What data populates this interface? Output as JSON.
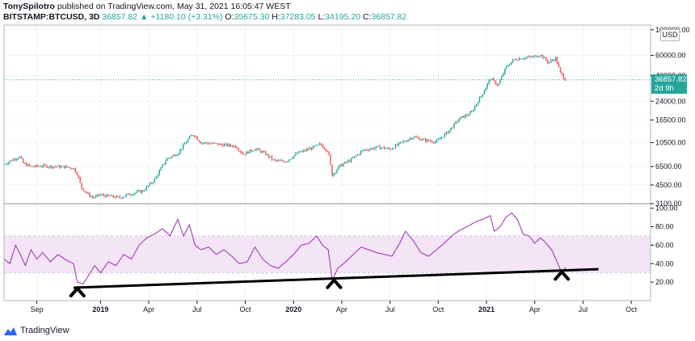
{
  "header": {
    "author": "TonySpilotro",
    "published_text": "published on TradingView.com, May 31, 2021 16:05:47 WEST",
    "symbol": "BITSTAMP:BTCUSD, 3D",
    "last": "36857.82",
    "arrow": "▲",
    "change": "+1180.10 (+3.31%)",
    "o_label": "O:",
    "o_val": "35675.30",
    "h_label": "H:",
    "h_val": "37283.05",
    "l_label": "L:",
    "l_val": "34195.20",
    "c_label": "C:",
    "c_val": "36857.82"
  },
  "currency_label": "USD",
  "price_box": {
    "price": "36857.82",
    "countdown": "2d 9h"
  },
  "footer": {
    "brand": "TradingView"
  },
  "colors": {
    "up": "#26a69a",
    "down": "#ef5350",
    "rsi": "#9c27b0",
    "rsi_band": "#f3e5f5",
    "trend": "#000000"
  },
  "chart_data": [
    {
      "type": "candlestick",
      "title": "BITSTAMP:BTCUSD, 3D",
      "yscale": "log",
      "ylim": [
        3100,
        110000
      ],
      "price_ticks": [
        "100000.00",
        "60000.00",
        "40000.00",
        "24000.00",
        "16500.00",
        "10500.00",
        "6500.00",
        "4500.00",
        "3100.00"
      ],
      "last_price": 36857.82,
      "time_range": [
        "2018-06",
        "2021-10"
      ],
      "close_series": [
        [
          2018.5,
          6800
        ],
        [
          2018.54,
          7400
        ],
        [
          2018.58,
          8000
        ],
        [
          2018.6,
          6900
        ],
        [
          2018.64,
          6500
        ],
        [
          2018.7,
          6600
        ],
        [
          2018.76,
          6500
        ],
        [
          2018.82,
          6450
        ],
        [
          2018.86,
          6300
        ],
        [
          2018.88,
          5600
        ],
        [
          2018.9,
          4300
        ],
        [
          2018.93,
          3800
        ],
        [
          2018.96,
          3500
        ],
        [
          2019.0,
          3700
        ],
        [
          2019.04,
          3600
        ],
        [
          2019.1,
          3500
        ],
        [
          2019.16,
          3800
        ],
        [
          2019.22,
          4000
        ],
        [
          2019.28,
          5000
        ],
        [
          2019.34,
          7500
        ],
        [
          2019.4,
          8500
        ],
        [
          2019.45,
          11000
        ],
        [
          2019.48,
          12500
        ],
        [
          2019.52,
          10500
        ],
        [
          2019.58,
          10300
        ],
        [
          2019.64,
          10000
        ],
        [
          2019.7,
          9800
        ],
        [
          2019.74,
          8300
        ],
        [
          2019.8,
          9300
        ],
        [
          2019.85,
          8500
        ],
        [
          2019.9,
          7300
        ],
        [
          2019.96,
          7200
        ],
        [
          2020.02,
          8500
        ],
        [
          2020.1,
          9500
        ],
        [
          2020.14,
          10200
        ],
        [
          2020.18,
          8800
        ],
        [
          2020.2,
          5500
        ],
        [
          2020.24,
          6600
        ],
        [
          2020.3,
          7500
        ],
        [
          2020.36,
          9000
        ],
        [
          2020.44,
          9600
        ],
        [
          2020.5,
          9200
        ],
        [
          2020.56,
          10500
        ],
        [
          2020.62,
          11800
        ],
        [
          2020.68,
          11000
        ],
        [
          2020.74,
          10700
        ],
        [
          2020.8,
          13000
        ],
        [
          2020.86,
          17000
        ],
        [
          2020.92,
          19000
        ],
        [
          2020.98,
          28000
        ],
        [
          2021.02,
          38000
        ],
        [
          2021.06,
          33000
        ],
        [
          2021.1,
          47000
        ],
        [
          2021.14,
          55000
        ],
        [
          2021.18,
          57000
        ],
        [
          2021.24,
          58000
        ],
        [
          2021.28,
          61000
        ],
        [
          2021.32,
          52000
        ],
        [
          2021.36,
          57000
        ],
        [
          2021.38,
          43000
        ],
        [
          2021.41,
          36857.82
        ]
      ]
    },
    {
      "type": "line",
      "title": "RSI",
      "ylim": [
        0,
        105
      ],
      "ticks": [
        "100.00",
        "80.00",
        "60.00",
        "40.00",
        "20.00"
      ],
      "band": [
        30,
        70
      ],
      "x_ticks": [
        {
          "t": 2018.67,
          "label": "Sep",
          "year": false
        },
        {
          "t": 2019.0,
          "label": "2019",
          "year": true
        },
        {
          "t": 2019.25,
          "label": "Apr",
          "year": false
        },
        {
          "t": 2019.5,
          "label": "Jul",
          "year": false
        },
        {
          "t": 2019.75,
          "label": "Oct",
          "year": false
        },
        {
          "t": 2020.0,
          "label": "2020",
          "year": true
        },
        {
          "t": 2020.25,
          "label": "Apr",
          "year": false
        },
        {
          "t": 2020.5,
          "label": "Jul",
          "year": false
        },
        {
          "t": 2020.75,
          "label": "Oct",
          "year": false
        },
        {
          "t": 2021.0,
          "label": "2021",
          "year": true
        },
        {
          "t": 2021.25,
          "label": "Apr",
          "year": false
        },
        {
          "t": 2021.5,
          "label": "Jul",
          "year": false
        },
        {
          "t": 2021.75,
          "label": "Oct",
          "year": false
        }
      ],
      "series": [
        [
          2018.5,
          45
        ],
        [
          2018.53,
          40
        ],
        [
          2018.56,
          60
        ],
        [
          2018.58,
          52
        ],
        [
          2018.61,
          38
        ],
        [
          2018.64,
          55
        ],
        [
          2018.67,
          45
        ],
        [
          2018.7,
          52
        ],
        [
          2018.74,
          42
        ],
        [
          2018.78,
          50
        ],
        [
          2018.82,
          44
        ],
        [
          2018.86,
          40
        ],
        [
          2018.88,
          20
        ],
        [
          2018.91,
          18
        ],
        [
          2018.94,
          28
        ],
        [
          2018.97,
          38
        ],
        [
          2019.0,
          30
        ],
        [
          2019.04,
          42
        ],
        [
          2019.08,
          38
        ],
        [
          2019.12,
          50
        ],
        [
          2019.16,
          45
        ],
        [
          2019.2,
          60
        ],
        [
          2019.24,
          68
        ],
        [
          2019.28,
          72
        ],
        [
          2019.32,
          78
        ],
        [
          2019.36,
          70
        ],
        [
          2019.4,
          88
        ],
        [
          2019.43,
          70
        ],
        [
          2019.46,
          82
        ],
        [
          2019.49,
          60
        ],
        [
          2019.52,
          55
        ],
        [
          2019.56,
          58
        ],
        [
          2019.6,
          50
        ],
        [
          2019.64,
          55
        ],
        [
          2019.68,
          48
        ],
        [
          2019.72,
          40
        ],
        [
          2019.76,
          42
        ],
        [
          2019.8,
          58
        ],
        [
          2019.84,
          45
        ],
        [
          2019.88,
          38
        ],
        [
          2019.92,
          35
        ],
        [
          2019.96,
          42
        ],
        [
          2020.0,
          50
        ],
        [
          2020.04,
          60
        ],
        [
          2020.08,
          62
        ],
        [
          2020.12,
          70
        ],
        [
          2020.15,
          60
        ],
        [
          2020.18,
          55
        ],
        [
          2020.2,
          22
        ],
        [
          2020.23,
          35
        ],
        [
          2020.27,
          42
        ],
        [
          2020.31,
          50
        ],
        [
          2020.35,
          58
        ],
        [
          2020.39,
          55
        ],
        [
          2020.43,
          52
        ],
        [
          2020.47,
          50
        ],
        [
          2020.51,
          48
        ],
        [
          2020.55,
          62
        ],
        [
          2020.58,
          75
        ],
        [
          2020.62,
          65
        ],
        [
          2020.66,
          52
        ],
        [
          2020.7,
          48
        ],
        [
          2020.74,
          55
        ],
        [
          2020.78,
          62
        ],
        [
          2020.82,
          70
        ],
        [
          2020.86,
          76
        ],
        [
          2020.9,
          80
        ],
        [
          2020.94,
          85
        ],
        [
          2020.98,
          88
        ],
        [
          2021.02,
          92
        ],
        [
          2021.04,
          75
        ],
        [
          2021.07,
          80
        ],
        [
          2021.1,
          90
        ],
        [
          2021.13,
          95
        ],
        [
          2021.16,
          88
        ],
        [
          2021.19,
          72
        ],
        [
          2021.22,
          70
        ],
        [
          2021.25,
          62
        ],
        [
          2021.28,
          68
        ],
        [
          2021.31,
          62
        ],
        [
          2021.34,
          54
        ],
        [
          2021.37,
          40
        ],
        [
          2021.39,
          30
        ],
        [
          2021.41,
          36
        ]
      ],
      "trendline": [
        [
          2018.86,
          14
        ],
        [
          2021.58,
          34
        ]
      ],
      "pivot_markers": [
        [
          2018.88,
          14
        ],
        [
          2020.21,
          23
        ],
        [
          2021.39,
          32
        ]
      ]
    }
  ]
}
